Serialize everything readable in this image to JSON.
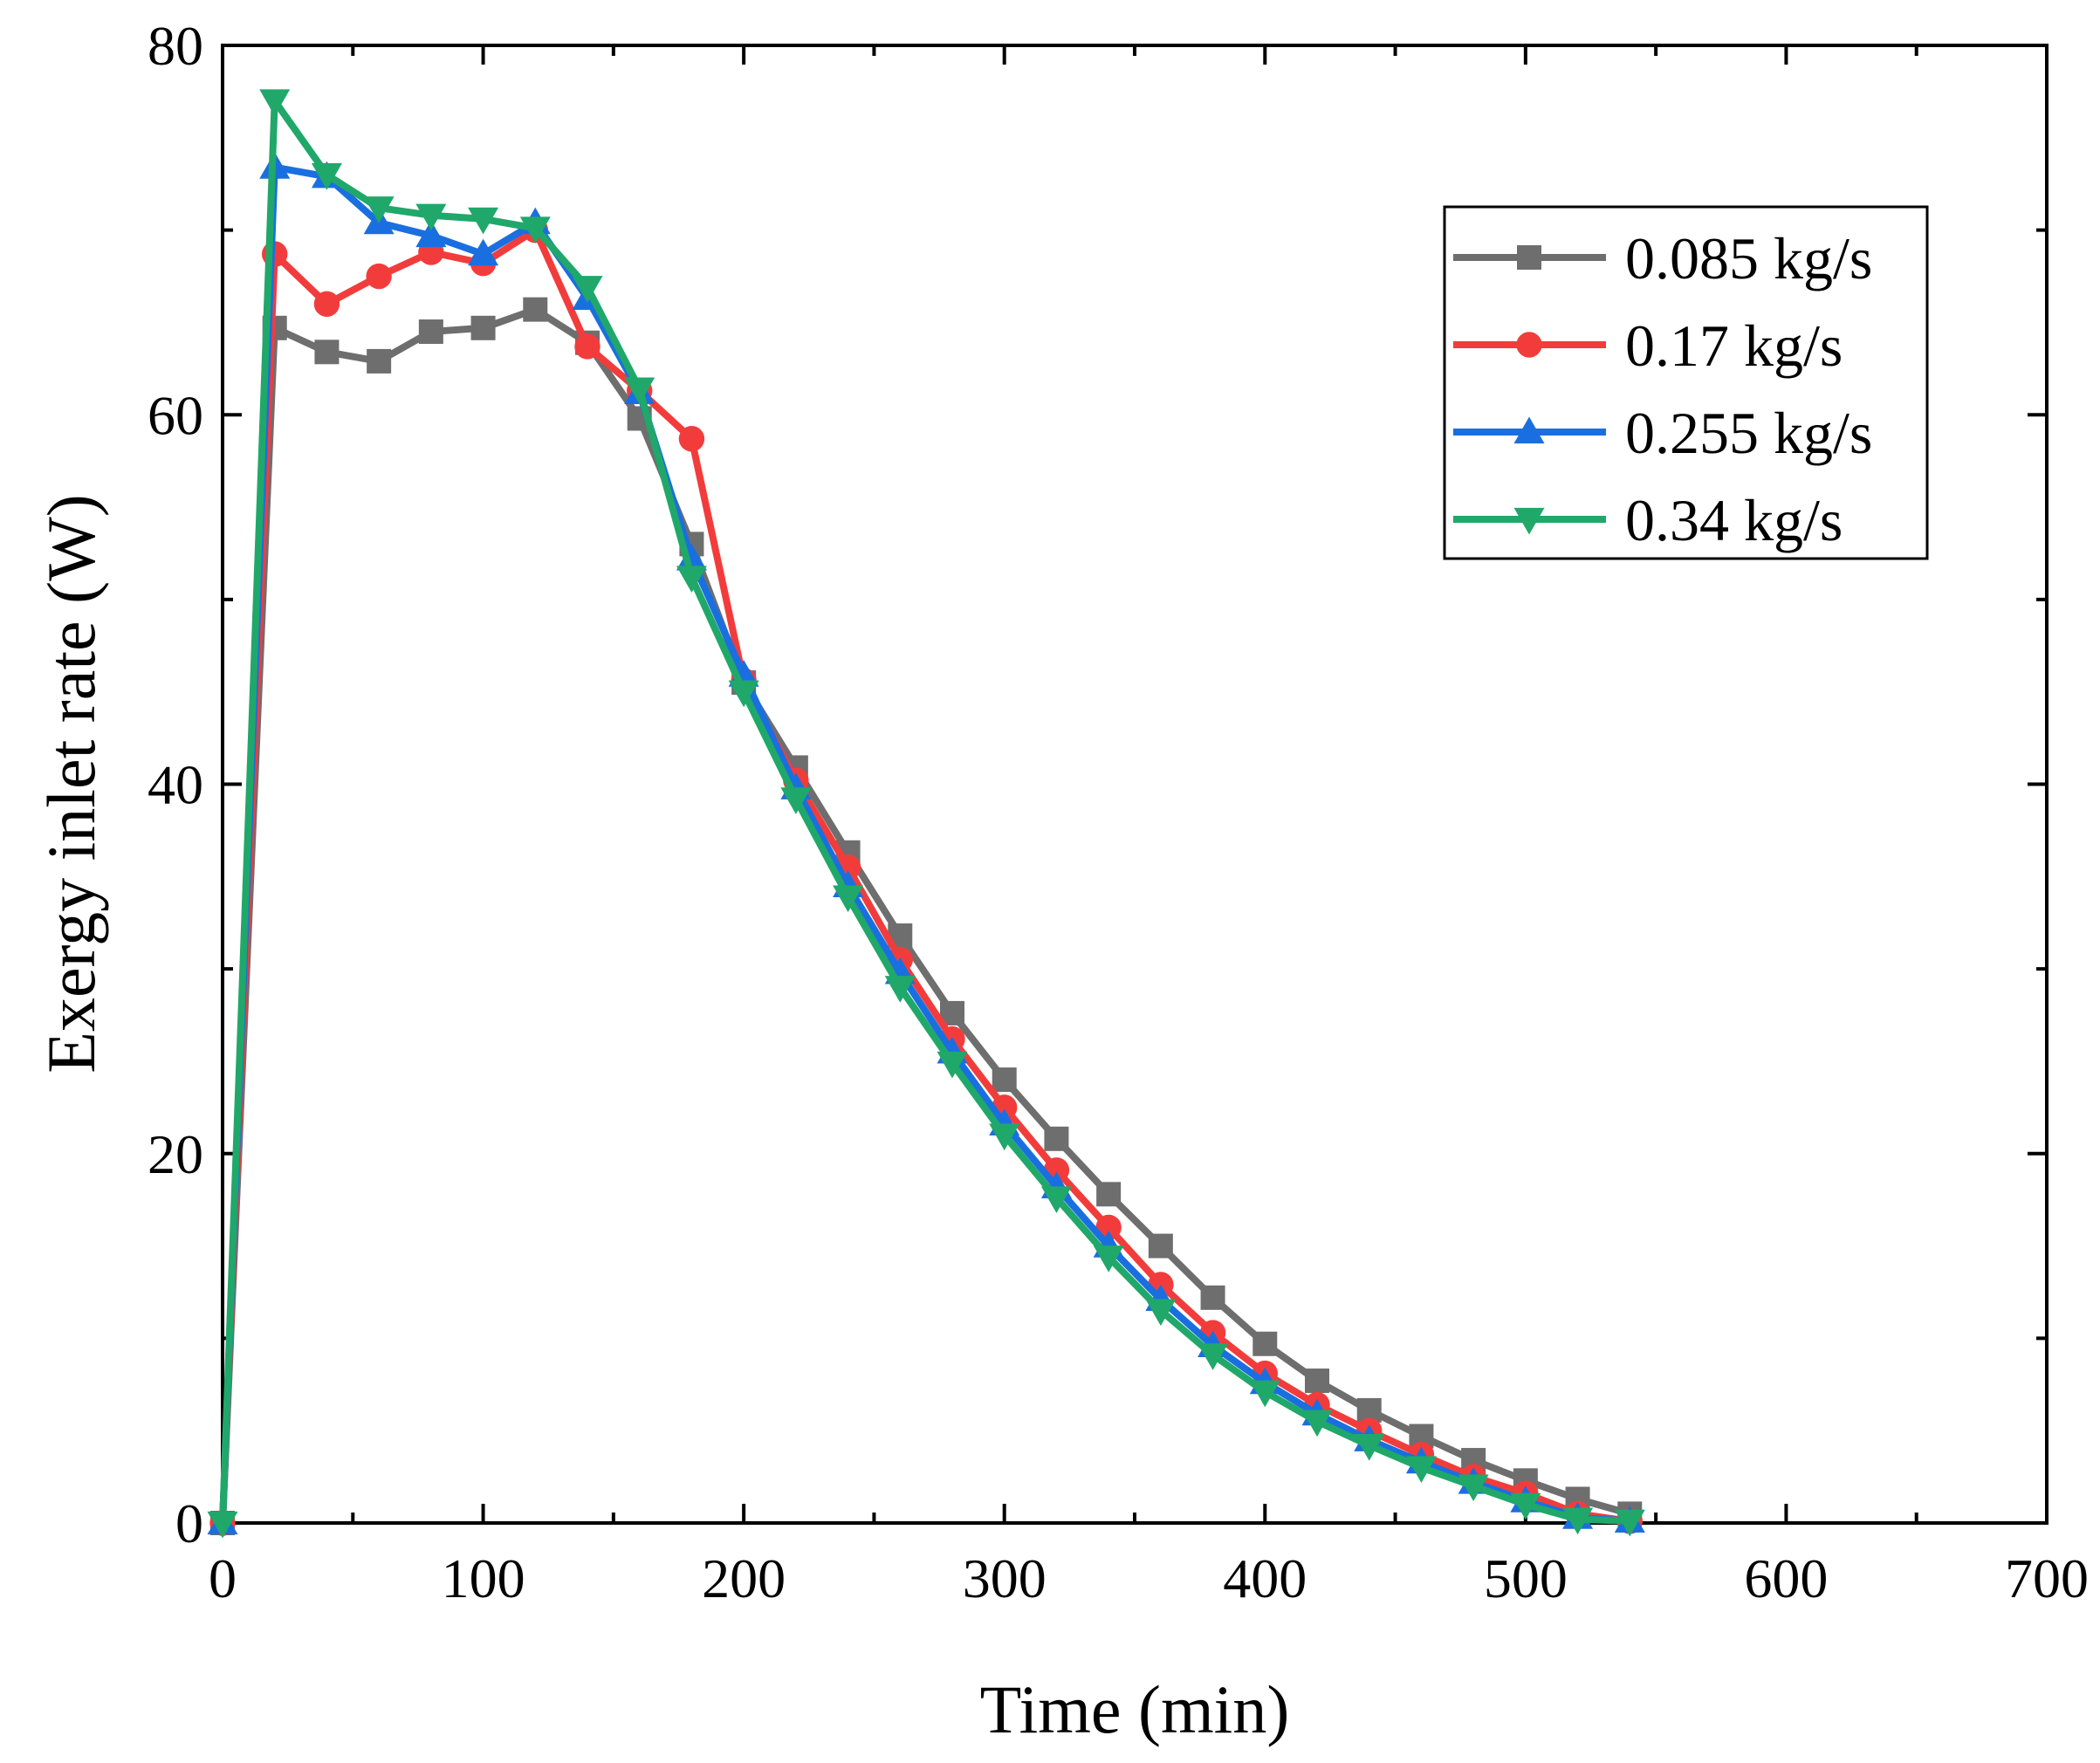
{
  "chart_data": {
    "type": "line",
    "title": "",
    "xlabel": "Time (min)",
    "ylabel": "Exergy inlet rate (W)",
    "xlim": [
      0,
      700
    ],
    "ylim": [
      0,
      80
    ],
    "xticks": [
      0,
      100,
      200,
      300,
      400,
      500,
      600,
      700
    ],
    "yticks": [
      0,
      20,
      40,
      60,
      80
    ],
    "xtick_labels": [
      "0",
      "100",
      "200",
      "300",
      "400",
      "500",
      "600",
      "700"
    ],
    "ytick_labels": [
      "0",
      "20",
      "40",
      "60",
      "80"
    ],
    "legend_position": "top-right",
    "x": [
      0,
      20,
      40,
      60,
      80,
      100,
      120,
      140,
      160,
      180,
      200,
      220,
      240,
      260,
      280,
      300,
      320,
      340,
      360,
      380,
      400,
      420,
      440,
      460,
      480,
      500,
      520,
      540
    ],
    "series": [
      {
        "name": "0.085 kg/s",
        "color": "#6e6e6e",
        "marker": "square",
        "values": [
          0,
          64.7,
          63.4,
          62.9,
          64.5,
          64.7,
          65.7,
          63.9,
          59.8,
          53.0,
          45.5,
          40.9,
          36.3,
          31.8,
          27.6,
          24.0,
          20.8,
          17.8,
          15.0,
          12.2,
          9.7,
          7.7,
          6.1,
          4.7,
          3.4,
          2.3,
          1.3,
          0.5
        ]
      },
      {
        "name": "0.17 kg/s",
        "color": "#f23c3c",
        "marker": "circle",
        "values": [
          0,
          68.7,
          66.0,
          67.5,
          68.8,
          68.2,
          70.0,
          63.7,
          61.3,
          58.7,
          45.6,
          40.2,
          35.5,
          30.5,
          26.2,
          22.5,
          19.1,
          16.0,
          12.9,
          10.3,
          8.1,
          6.4,
          5.0,
          3.7,
          2.5,
          1.6,
          0.5,
          0.1
        ]
      },
      {
        "name": "0.255 kg/s",
        "color": "#1a6fe0",
        "marker": "triangle-up",
        "values": [
          0,
          73.4,
          72.9,
          70.4,
          69.7,
          68.7,
          70.4,
          66.3,
          61.2,
          52.2,
          45.9,
          39.8,
          34.5,
          29.8,
          25.5,
          21.6,
          18.2,
          15.0,
          12.1,
          9.6,
          7.6,
          5.9,
          4.5,
          3.3,
          2.2,
          1.2,
          0.3,
          0.1
        ]
      },
      {
        "name": "0.34 kg/s",
        "color": "#1fa86a",
        "marker": "triangle-down",
        "values": [
          0,
          77.0,
          73.0,
          71.2,
          70.8,
          70.6,
          70.1,
          66.9,
          61.4,
          51.2,
          45.0,
          39.2,
          33.9,
          29.0,
          24.9,
          21.0,
          17.6,
          14.4,
          11.5,
          9.1,
          7.1,
          5.5,
          4.2,
          3.0,
          2.0,
          1.0,
          0.2,
          0.1
        ]
      }
    ]
  }
}
